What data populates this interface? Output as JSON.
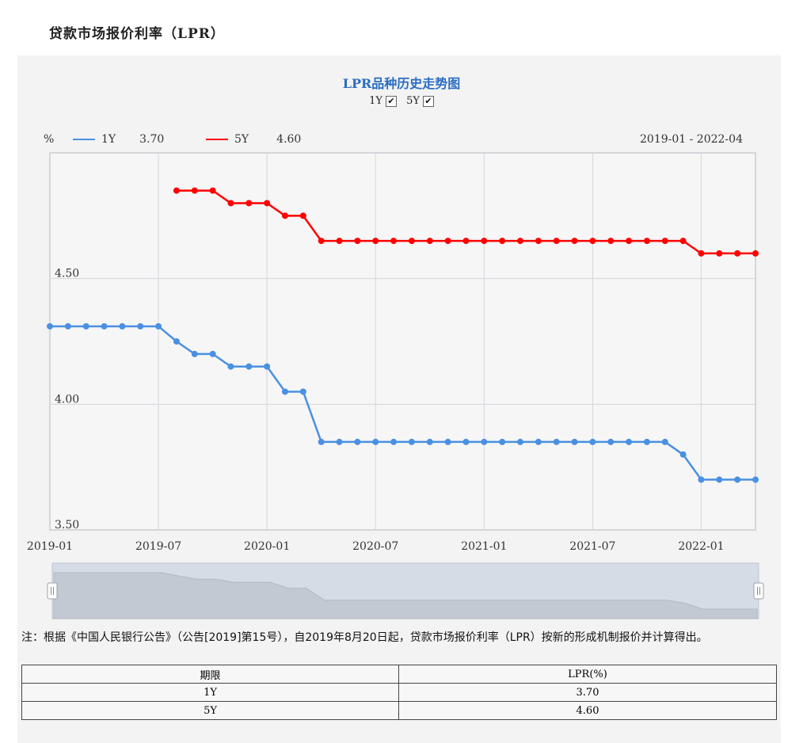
{
  "page": {
    "title": "贷款市场报价利率（LPR）"
  },
  "chart_header": {
    "title": "LPR品种历史走势图",
    "toggles": [
      {
        "label": "1Y",
        "checked": true
      },
      {
        "label": "5Y",
        "checked": true
      }
    ],
    "unit": "%",
    "legend": [
      {
        "name": "1Y",
        "latest": "3.70",
        "color": "#4a90e2"
      },
      {
        "name": "5Y",
        "latest": "4.60",
        "color": "#ff0000"
      }
    ],
    "date_range": "2019-01 - 2022-04"
  },
  "chart_data": {
    "type": "line",
    "x": [
      "2019-01",
      "2019-02",
      "2019-03",
      "2019-04",
      "2019-05",
      "2019-06",
      "2019-07",
      "2019-08",
      "2019-09",
      "2019-10",
      "2019-11",
      "2019-12",
      "2020-01",
      "2020-02",
      "2020-03",
      "2020-04",
      "2020-05",
      "2020-06",
      "2020-07",
      "2020-08",
      "2020-09",
      "2020-10",
      "2020-11",
      "2020-12",
      "2021-01",
      "2021-02",
      "2021-03",
      "2021-04",
      "2021-05",
      "2021-06",
      "2021-07",
      "2021-08",
      "2021-09",
      "2021-10",
      "2021-11",
      "2021-12",
      "2022-01",
      "2022-02",
      "2022-03",
      "2022-04"
    ],
    "series": [
      {
        "name": "1Y",
        "color": "#4a90e2",
        "values": [
          4.31,
          4.31,
          4.31,
          4.31,
          4.31,
          4.31,
          4.31,
          4.25,
          4.2,
          4.2,
          4.15,
          4.15,
          4.15,
          4.05,
          4.05,
          3.85,
          3.85,
          3.85,
          3.85,
          3.85,
          3.85,
          3.85,
          3.85,
          3.85,
          3.85,
          3.85,
          3.85,
          3.85,
          3.85,
          3.85,
          3.85,
          3.85,
          3.85,
          3.85,
          3.85,
          3.8,
          3.7,
          3.7,
          3.7,
          3.7
        ]
      },
      {
        "name": "5Y",
        "color": "#ff0000",
        "values": [
          null,
          null,
          null,
          null,
          null,
          null,
          null,
          4.85,
          4.85,
          4.85,
          4.8,
          4.8,
          4.8,
          4.75,
          4.75,
          4.65,
          4.65,
          4.65,
          4.65,
          4.65,
          4.65,
          4.65,
          4.65,
          4.65,
          4.65,
          4.65,
          4.65,
          4.65,
          4.65,
          4.65,
          4.65,
          4.65,
          4.65,
          4.65,
          4.65,
          4.65,
          4.6,
          4.6,
          4.6,
          4.6
        ]
      }
    ],
    "x_ticks": [
      "2019-01",
      "2019-07",
      "2020-01",
      "2020-07",
      "2021-01",
      "2021-07",
      "2022-01"
    ],
    "y_ticks": [
      "3.50",
      "4.00",
      "4.50"
    ],
    "ylim": [
      3.5,
      5.0
    ],
    "grid": true
  },
  "note": "注：根据《中国人民银行公告》（公告[2019]第15号），自2019年8月20日起，贷款市场报价利率（LPR）按新的形成机制报价并计算得出。",
  "table": {
    "headers": [
      "期限",
      "LPR(%)"
    ],
    "rows": [
      [
        "1Y",
        "3.70"
      ],
      [
        "5Y",
        "4.60"
      ]
    ]
  }
}
